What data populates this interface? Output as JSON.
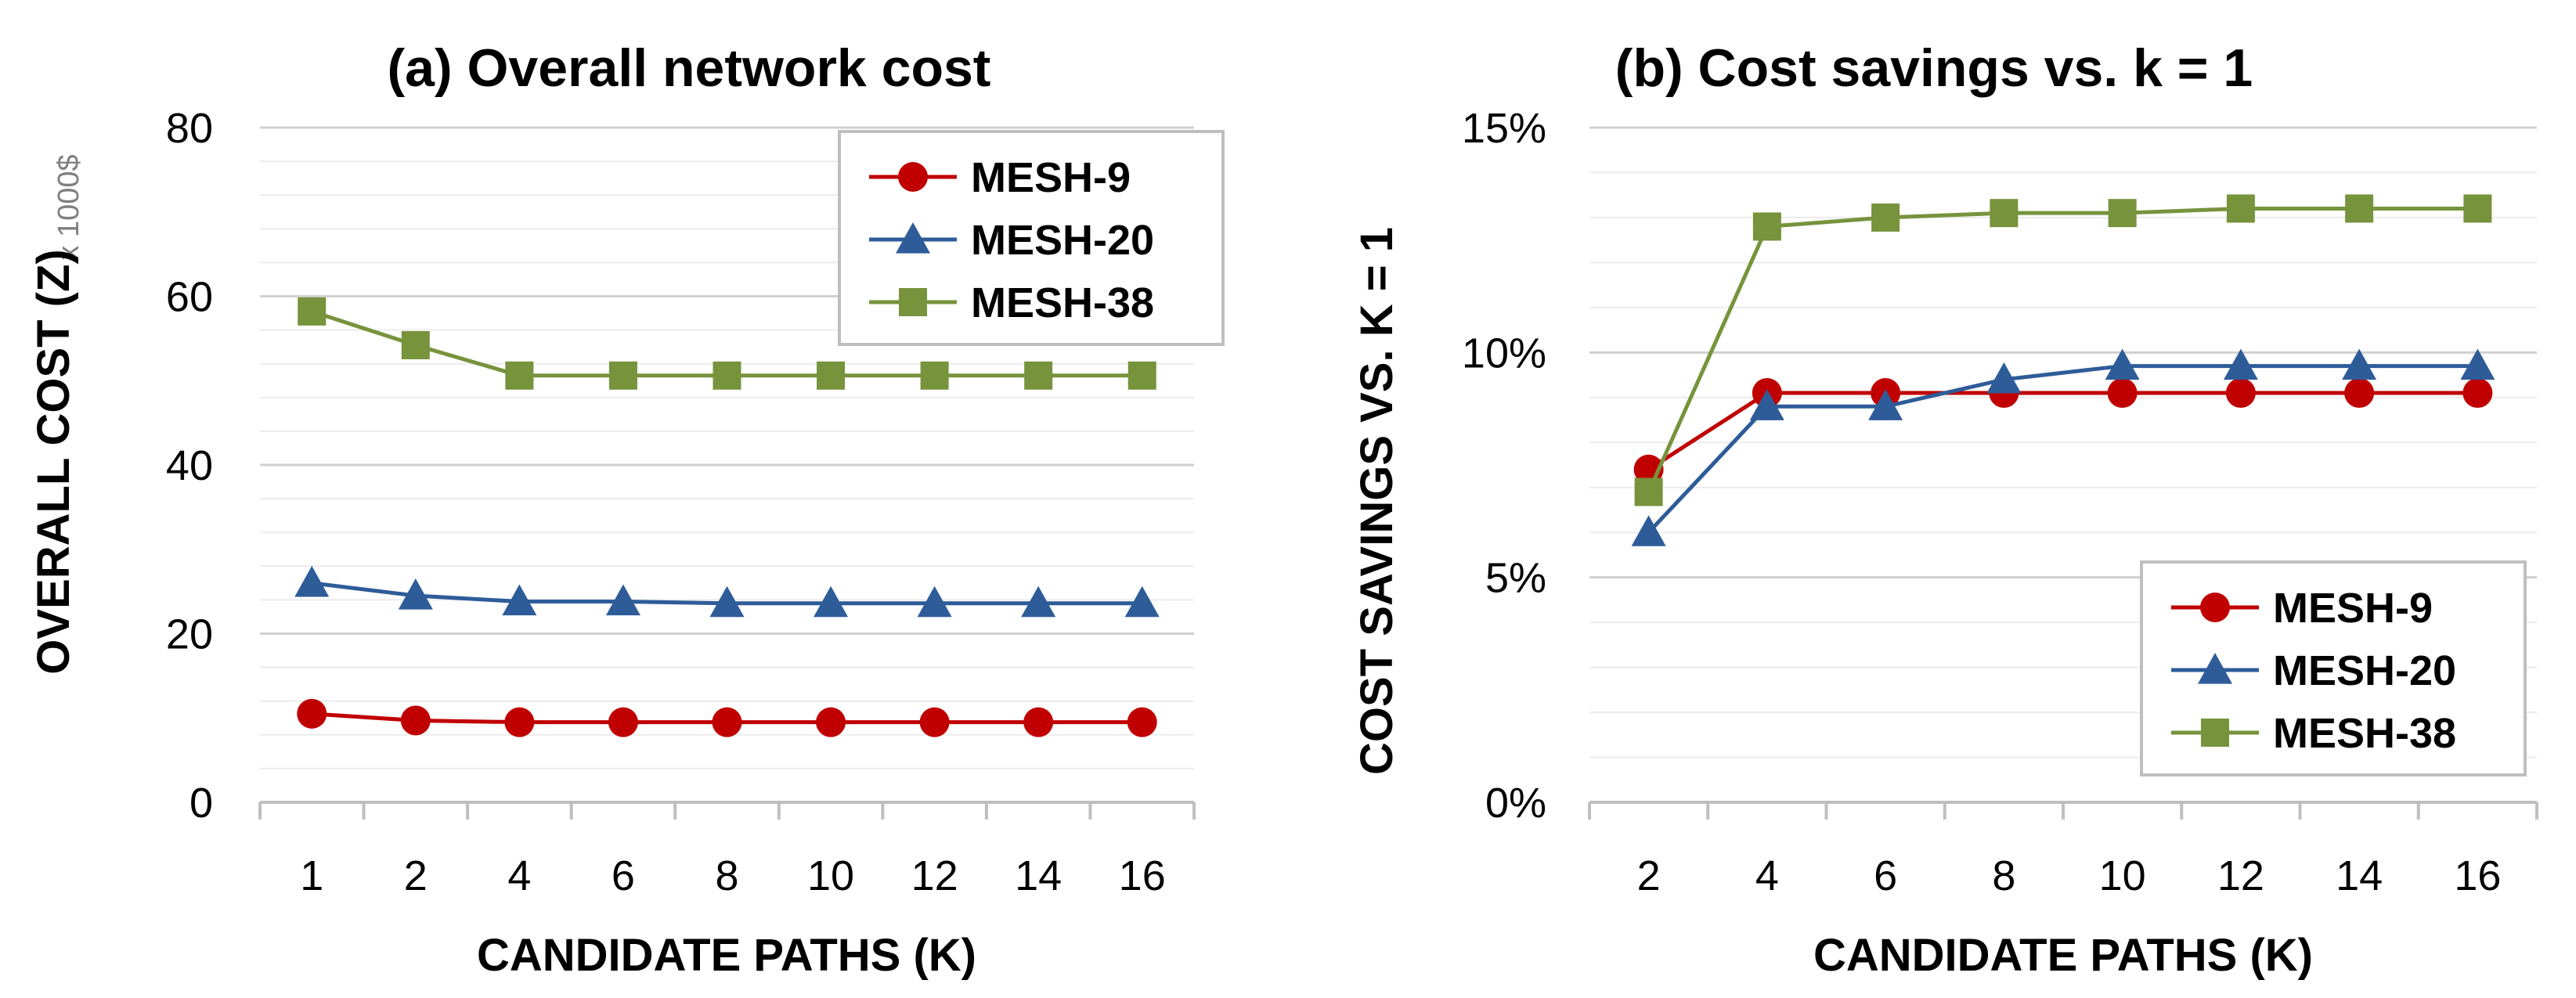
{
  "colors": {
    "mesh9": "#C00000",
    "mesh20": "#2E5C99",
    "mesh38": "#77933C"
  },
  "chart_data": [
    {
      "type": "line",
      "title": "(a) Overall network cost",
      "xlabel": "CANDIDATE PATHS (K)",
      "ylabel": "OVERALL COST (Z)",
      "y_unit": "x 1000$",
      "categories": [
        "1",
        "2",
        "4",
        "6",
        "8",
        "10",
        "12",
        "14",
        "16"
      ],
      "ylim": [
        0,
        80
      ],
      "yticks": [
        "0",
        "20",
        "40",
        "60",
        "80"
      ],
      "grid": true,
      "legend": "top-right",
      "series": [
        {
          "name": "MESH-9",
          "marker": "circle",
          "color": "#C00000",
          "values": [
            10.5,
            9.7,
            9.5,
            9.5,
            9.5,
            9.5,
            9.5,
            9.5,
            9.5
          ]
        },
        {
          "name": "MESH-20",
          "marker": "triangle",
          "color": "#2E5C99",
          "values": [
            26.0,
            24.5,
            23.8,
            23.8,
            23.6,
            23.6,
            23.6,
            23.6,
            23.6
          ]
        },
        {
          "name": "MESH-38",
          "marker": "square",
          "color": "#77933C",
          "values": [
            58.2,
            54.2,
            50.6,
            50.6,
            50.6,
            50.6,
            50.6,
            50.6,
            50.6
          ]
        }
      ]
    },
    {
      "type": "line",
      "title": "(b) Cost savings vs. k = 1",
      "xlabel": "CANDIDATE PATHS (K)",
      "ylabel": "COST SAVINGS VS. K = 1",
      "categories": [
        "2",
        "4",
        "6",
        "8",
        "10",
        "12",
        "14",
        "16"
      ],
      "ylim": [
        0,
        15
      ],
      "yticks": [
        "0%",
        "5%",
        "10%",
        "15%"
      ],
      "grid": true,
      "legend": "bottom-right",
      "series": [
        {
          "name": "MESH-9",
          "marker": "circle",
          "color": "#C00000",
          "values": [
            7.4,
            9.1,
            9.1,
            9.1,
            9.1,
            9.1,
            9.1,
            9.1
          ]
        },
        {
          "name": "MESH-20",
          "marker": "triangle",
          "color": "#2E5C99",
          "values": [
            6.0,
            8.8,
            8.8,
            9.4,
            9.7,
            9.7,
            9.7,
            9.7
          ]
        },
        {
          "name": "MESH-38",
          "marker": "square",
          "color": "#77933C",
          "values": [
            6.9,
            12.8,
            13.0,
            13.1,
            13.1,
            13.2,
            13.2,
            13.2
          ]
        }
      ]
    }
  ]
}
